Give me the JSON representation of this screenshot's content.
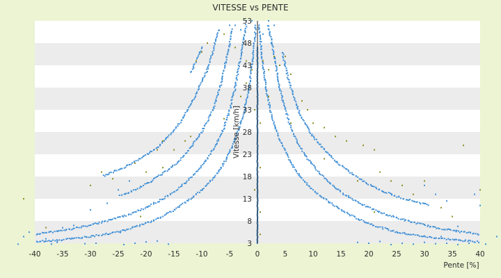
{
  "chart_data": {
    "type": "scatter",
    "title": "VITESSE vs PENTE",
    "xlabel": "Pente [%]",
    "ylabel": "Vitesse [km/h]",
    "xlim": [
      -40,
      40
    ],
    "ylim": [
      3,
      53
    ],
    "x_ticks": [
      -40,
      -35,
      -30,
      -25,
      -20,
      -15,
      -10,
      -5,
      0,
      5,
      10,
      15,
      20,
      25,
      30,
      35,
      40
    ],
    "y_ticks": [
      3,
      8,
      13,
      18,
      23,
      28,
      33,
      38,
      43,
      48,
      53
    ],
    "grid": "horizontal bands",
    "legend": "none",
    "colors": {
      "series_blue": "#3f8fd6",
      "series_olive": "#8c8a1f",
      "band": "#ececec",
      "plot_bg": "#ffffff"
    },
    "series": [
      {
        "color": "#3f8fd6",
        "curves": [
          {
            "points": [
              [
                0.3,
                52
              ],
              [
                0.8,
                45
              ],
              [
                1.5,
                38
              ],
              [
                2.5,
                32
              ],
              [
                3.5,
                28
              ],
              [
                4.5,
                25
              ],
              [
                6,
                21
              ],
              [
                8,
                17.5
              ],
              [
                10,
                15
              ],
              [
                12,
                13
              ],
              [
                15,
                10.5
              ],
              [
                18,
                8.5
              ],
              [
                21,
                7
              ],
              [
                25,
                5.5
              ],
              [
                30,
                4.5
              ],
              [
                35,
                3.8
              ],
              [
                40,
                3.3
              ]
            ]
          },
          {
            "points": [
              [
                2,
                52
              ],
              [
                3,
                45
              ],
              [
                4,
                38
              ],
              [
                5,
                33
              ],
              [
                6,
                29
              ],
              [
                7.5,
                25
              ],
              [
                9,
                22
              ],
              [
                11,
                19
              ],
              [
                13,
                16.5
              ],
              [
                15,
                14.5
              ],
              [
                17,
                13
              ],
              [
                20,
                11
              ],
              [
                23,
                9.5
              ],
              [
                27,
                8
              ],
              [
                32,
                6.5
              ],
              [
                37,
                5.5
              ],
              [
                40,
                5
              ]
            ]
          },
          {
            "points": [
              [
                4.5,
                46
              ],
              [
                5.5,
                40
              ],
              [
                6.5,
                36
              ],
              [
                8,
                31
              ],
              [
                10,
                27
              ],
              [
                12,
                24
              ],
              [
                14,
                21.5
              ],
              [
                16,
                19.5
              ],
              [
                19,
                17
              ],
              [
                22,
                15
              ],
              [
                25,
                13.5
              ],
              [
                28,
                12.5
              ],
              [
                31,
                11.5
              ]
            ]
          },
          {
            "points": [
              [
                -0.3,
                52
              ],
              [
                -0.8,
                45
              ],
              [
                -1.5,
                38
              ],
              [
                -2.5,
                32
              ],
              [
                -3.5,
                28
              ],
              [
                -4.5,
                25
              ],
              [
                -6,
                21
              ],
              [
                -8,
                17.5
              ],
              [
                -10,
                15
              ],
              [
                -12,
                13
              ],
              [
                -15,
                10.5
              ],
              [
                -18,
                8.5
              ],
              [
                -21,
                7
              ],
              [
                -25,
                5.5
              ],
              [
                -30,
                4.5
              ],
              [
                -35,
                3.8
              ],
              [
                -40,
                3.3
              ]
            ]
          },
          {
            "points": [
              [
                -2,
                52
              ],
              [
                -3,
                45
              ],
              [
                -4,
                38
              ],
              [
                -5,
                33
              ],
              [
                -6,
                29
              ],
              [
                -7.5,
                25
              ],
              [
                -9,
                22
              ],
              [
                -11,
                19
              ],
              [
                -13,
                16.5
              ],
              [
                -15,
                14.5
              ],
              [
                -17,
                13
              ],
              [
                -20,
                11
              ],
              [
                -23,
                9.5
              ],
              [
                -27,
                8
              ],
              [
                -32,
                6.5
              ],
              [
                -37,
                5.5
              ],
              [
                -40,
                5
              ]
            ]
          },
          {
            "points": [
              [
                -4.5,
                51
              ],
              [
                -5.5,
                45
              ],
              [
                -6.5,
                39
              ],
              [
                -8,
                33
              ],
              [
                -10,
                28
              ],
              [
                -12,
                24.5
              ],
              [
                -14,
                21.5
              ],
              [
                -16,
                19.5
              ],
              [
                -19,
                17
              ],
              [
                -22,
                15
              ],
              [
                -25,
                13.5
              ]
            ]
          },
          {
            "points": [
              [
                -7,
                51
              ],
              [
                -8,
                46
              ],
              [
                -9,
                42
              ],
              [
                -10.5,
                38
              ],
              [
                -12,
                34
              ],
              [
                -14,
                30
              ],
              [
                -16,
                27
              ],
              [
                -18,
                24.5
              ],
              [
                -21,
                22
              ],
              [
                -24,
                20
              ],
              [
                -28,
                18
              ]
            ]
          },
          {
            "points": [
              [
                -10,
                47
              ],
              [
                -11,
                44
              ],
              [
                -12,
                41
              ]
            ]
          }
        ],
        "points": [
          [
            -44,
            1.5
          ],
          [
            -43,
            2.8
          ],
          [
            -42,
            4.5
          ],
          [
            -41,
            5.5
          ],
          [
            -39,
            2.5
          ],
          [
            -37,
            2.8
          ],
          [
            -35,
            6.5
          ],
          [
            -33,
            7
          ],
          [
            -31,
            2.9
          ],
          [
            -29,
            3
          ],
          [
            -27,
            2.5
          ],
          [
            -24,
            2.7
          ],
          [
            -22,
            3
          ],
          [
            -20,
            3.3
          ],
          [
            -18,
            3.5
          ],
          [
            -16,
            2.8
          ],
          [
            18,
            3.2
          ],
          [
            20,
            3
          ],
          [
            22,
            3.4
          ],
          [
            24,
            2.7
          ],
          [
            26,
            3
          ],
          [
            28,
            2.8
          ],
          [
            30,
            3.2
          ],
          [
            32,
            2.9
          ],
          [
            34,
            3
          ],
          [
            36,
            2.7
          ],
          [
            38,
            3
          ],
          [
            39,
            2.5
          ],
          [
            41,
            2.8
          ],
          [
            43,
            4.5
          ],
          [
            44,
            5.5
          ],
          [
            -38,
            4
          ],
          [
            -36,
            3.2
          ],
          [
            33,
            4.5
          ],
          [
            36,
            6.8
          ],
          [
            -30,
            10.5
          ],
          [
            -27,
            12
          ],
          [
            -25,
            15
          ],
          [
            -23,
            17
          ],
          [
            30,
            16
          ],
          [
            32,
            14
          ],
          [
            34,
            12.5
          ],
          [
            39,
            14
          ],
          [
            40,
            11.5
          ],
          [
            2,
            53
          ],
          [
            3,
            52
          ],
          [
            -1,
            53
          ],
          [
            -2,
            53
          ],
          [
            2.5,
            48
          ],
          [
            -3,
            51
          ],
          [
            -4,
            52
          ],
          [
            -5,
            52
          ],
          [
            1,
            50
          ]
        ]
      },
      {
        "color": "#8c8a1f",
        "points": [
          [
            -42,
            13
          ],
          [
            -38,
            6.5
          ],
          [
            -30,
            16
          ],
          [
            -28,
            19
          ],
          [
            -26,
            17.5
          ],
          [
            -22,
            21
          ],
          [
            -20,
            19
          ],
          [
            -18,
            24
          ],
          [
            -17,
            26
          ],
          [
            -15,
            24
          ],
          [
            -13,
            26
          ],
          [
            -11,
            44
          ],
          [
            -10,
            46
          ],
          [
            -9,
            48
          ],
          [
            -6,
            50
          ],
          [
            -4,
            47
          ],
          [
            -2,
            44
          ],
          [
            -1,
            42
          ],
          [
            1,
            44
          ],
          [
            2,
            42
          ],
          [
            3,
            45
          ],
          [
            4,
            43
          ],
          [
            5,
            45
          ],
          [
            6,
            41
          ],
          [
            8,
            35
          ],
          [
            9,
            33
          ],
          [
            10,
            30
          ],
          [
            12,
            29
          ],
          [
            14,
            27
          ],
          [
            16,
            26
          ],
          [
            19,
            25
          ],
          [
            21,
            24
          ],
          [
            22,
            19
          ],
          [
            24,
            17
          ],
          [
            26,
            16
          ],
          [
            28,
            14
          ],
          [
            30,
            17
          ],
          [
            33,
            11
          ],
          [
            35,
            9
          ],
          [
            37,
            25
          ],
          [
            40,
            15
          ],
          [
            -2,
            39
          ],
          [
            -3,
            36
          ],
          [
            2,
            36
          ],
          [
            -6,
            31
          ],
          [
            6,
            30
          ],
          [
            -12,
            27
          ],
          [
            12,
            22
          ],
          [
            -17,
            20
          ],
          [
            18,
            17
          ],
          [
            -21,
            9
          ],
          [
            21,
            10
          ],
          [
            0.5,
            30
          ],
          [
            -0.5,
            33
          ],
          [
            0.5,
            20
          ],
          [
            -0.5,
            15
          ],
          [
            0.5,
            10
          ],
          [
            0.5,
            5
          ]
        ]
      }
    ]
  }
}
